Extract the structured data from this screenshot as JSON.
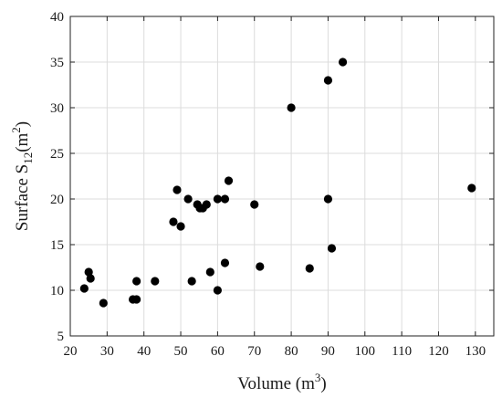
{
  "chart_data": {
    "type": "scatter",
    "title": "",
    "xlabel": {
      "base": "Volume (m",
      "sup": "3",
      "tail": ")"
    },
    "ylabel": {
      "base": "Surface S",
      "sub": "12",
      "mid": "(m",
      "sup": "2",
      "tail": ")"
    },
    "xlim": [
      20,
      135
    ],
    "ylim": [
      5,
      40
    ],
    "xticks": [
      20,
      30,
      40,
      50,
      60,
      70,
      80,
      90,
      100,
      110,
      120,
      130
    ],
    "yticks": [
      5,
      10,
      15,
      20,
      25,
      30,
      35,
      40
    ],
    "grid": true,
    "marker_color": "#000000",
    "points": [
      {
        "x": 23.8,
        "y": 10.2
      },
      {
        "x": 25.0,
        "y": 12.0
      },
      {
        "x": 25.5,
        "y": 11.3
      },
      {
        "x": 29.0,
        "y": 8.6
      },
      {
        "x": 37.0,
        "y": 9.0
      },
      {
        "x": 38.0,
        "y": 9.0
      },
      {
        "x": 38.0,
        "y": 11.0
      },
      {
        "x": 43.0,
        "y": 11.0
      },
      {
        "x": 48.0,
        "y": 17.5
      },
      {
        "x": 49.0,
        "y": 21.0
      },
      {
        "x": 50.0,
        "y": 17.0
      },
      {
        "x": 52.0,
        "y": 20.0
      },
      {
        "x": 53.0,
        "y": 11.0
      },
      {
        "x": 54.5,
        "y": 19.4
      },
      {
        "x": 55.2,
        "y": 19.0
      },
      {
        "x": 56.0,
        "y": 19.0
      },
      {
        "x": 57.0,
        "y": 19.4
      },
      {
        "x": 58.0,
        "y": 12.0
      },
      {
        "x": 60.0,
        "y": 20.0
      },
      {
        "x": 60.0,
        "y": 10.0
      },
      {
        "x": 62.0,
        "y": 20.0
      },
      {
        "x": 62.0,
        "y": 13.0
      },
      {
        "x": 63.0,
        "y": 22.0
      },
      {
        "x": 70.0,
        "y": 19.4
      },
      {
        "x": 71.5,
        "y": 12.6
      },
      {
        "x": 80.0,
        "y": 30.0
      },
      {
        "x": 85.0,
        "y": 12.4
      },
      {
        "x": 90.0,
        "y": 33.0
      },
      {
        "x": 90.0,
        "y": 20.0
      },
      {
        "x": 91.0,
        "y": 14.6
      },
      {
        "x": 94.0,
        "y": 35.0
      },
      {
        "x": 129.0,
        "y": 21.2
      }
    ]
  }
}
